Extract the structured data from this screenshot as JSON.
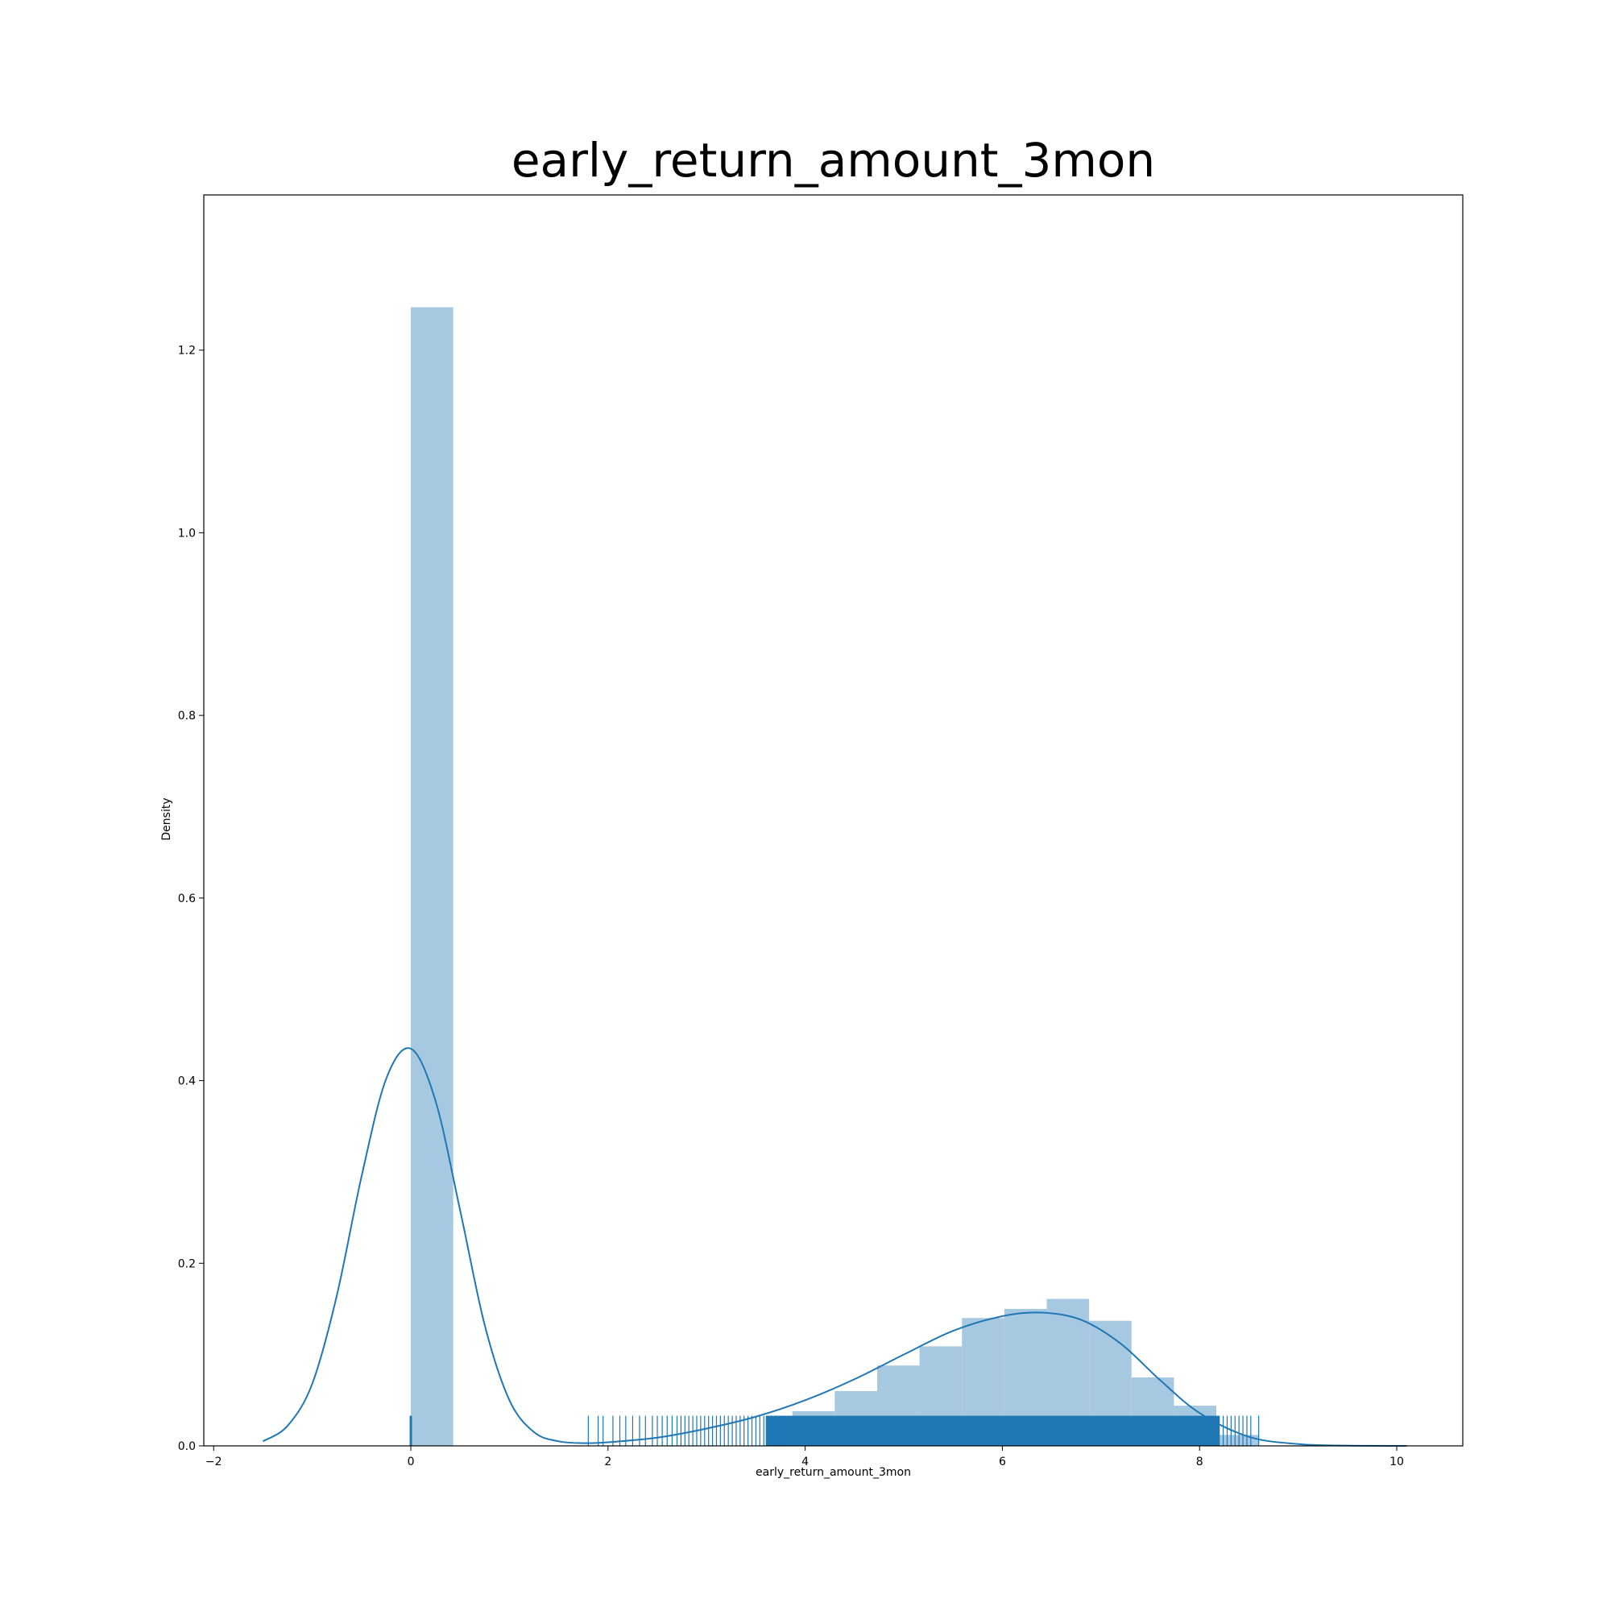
{
  "chart_data": {
    "type": "bar",
    "title": "early_return_amount_3mon",
    "xlabel": "early_return_amount_3mon",
    "ylabel": "Density",
    "xlim": [
      -2.1,
      10.67
    ],
    "ylim": [
      0,
      1.37
    ],
    "xticks": [
      "−2",
      "0",
      "2",
      "4",
      "6",
      "8",
      "10"
    ],
    "xtick_values": [
      -2,
      0,
      2,
      4,
      6,
      8,
      10
    ],
    "yticks": [
      "0.0",
      "0.2",
      "0.4",
      "0.6",
      "0.8",
      "1.0",
      "1.2"
    ],
    "ytick_values": [
      0,
      0.2,
      0.4,
      0.6,
      0.8,
      1.0,
      1.2
    ],
    "grid": false,
    "colors": {
      "bar": "#a6c8e0",
      "line": "#1f77b4",
      "rug": "#1f77b4"
    },
    "histogram": {
      "bins": [
        {
          "x0": 0.0,
          "x1": 0.43,
          "density": 1.247
        },
        {
          "x0": 3.87,
          "x1": 4.3,
          "density": 0.038
        },
        {
          "x0": 4.3,
          "x1": 4.73,
          "density": 0.06
        },
        {
          "x0": 4.73,
          "x1": 5.16,
          "density": 0.088
        },
        {
          "x0": 5.16,
          "x1": 5.59,
          "density": 0.109
        },
        {
          "x0": 5.59,
          "x1": 6.02,
          "density": 0.14
        },
        {
          "x0": 6.02,
          "x1": 6.45,
          "density": 0.15
        },
        {
          "x0": 6.45,
          "x1": 6.88,
          "density": 0.161
        },
        {
          "x0": 6.88,
          "x1": 7.31,
          "density": 0.137
        },
        {
          "x0": 7.31,
          "x1": 7.74,
          "density": 0.075
        },
        {
          "x0": 7.74,
          "x1": 8.17,
          "density": 0.044
        },
        {
          "x0": 8.17,
          "x1": 8.6,
          "density": 0.012
        }
      ]
    },
    "kde": {
      "x": [
        -1.5,
        -1.25,
        -1.0,
        -0.75,
        -0.5,
        -0.25,
        0.0,
        0.25,
        0.5,
        0.75,
        1.0,
        1.25,
        1.5,
        1.75,
        2.0,
        2.5,
        3.0,
        3.5,
        4.0,
        4.5,
        5.0,
        5.5,
        6.0,
        6.4,
        6.8,
        7.2,
        7.6,
        8.0,
        8.5,
        9.0,
        9.5,
        10.1
      ],
      "y": [
        0.005,
        0.022,
        0.068,
        0.165,
        0.295,
        0.402,
        0.435,
        0.378,
        0.258,
        0.132,
        0.05,
        0.015,
        0.005,
        0.003,
        0.004,
        0.009,
        0.019,
        0.032,
        0.05,
        0.073,
        0.1,
        0.126,
        0.142,
        0.146,
        0.138,
        0.112,
        0.072,
        0.036,
        0.01,
        0.002,
        0.0003,
        0.0
      ]
    },
    "rug": {
      "height": 0.033,
      "points": [
        0.0,
        1.8,
        1.9,
        1.95,
        2.05,
        2.12,
        2.18,
        2.25,
        2.32,
        2.38,
        2.45,
        2.5,
        2.55,
        2.6,
        2.65,
        2.7,
        2.74,
        2.78,
        2.82,
        2.86,
        2.9,
        2.94,
        2.98,
        3.02,
        3.06,
        3.1,
        3.14,
        3.18,
        3.22,
        3.26,
        3.3,
        3.34,
        3.38,
        3.42,
        3.46,
        3.5,
        3.54,
        3.58,
        3.62,
        3.66,
        3.7,
        3.74,
        3.78,
        8.2,
        8.24,
        8.28,
        8.32,
        8.36,
        8.4,
        8.44,
        8.48,
        8.52,
        8.6
      ],
      "dense_ranges": [
        [
          3.6,
          8.2
        ]
      ]
    }
  }
}
